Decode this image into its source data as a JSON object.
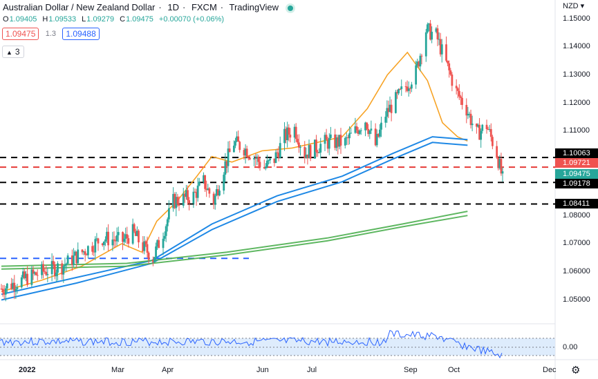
{
  "header": {
    "symbol_name": "Australian Dollar / New Zealand Dollar",
    "interval": "1D",
    "exchange": "FXCM",
    "source": "TradingView"
  },
  "ohlc": {
    "o_label": "O",
    "o_value": "1.09405",
    "h_label": "H",
    "h_value": "1.09533",
    "l_label": "L",
    "l_value": "1.09279",
    "c_label": "C",
    "c_value": "1.09475",
    "change": "+0.00070 (+0.06%)"
  },
  "quote": {
    "sell": "1.09475",
    "spread": "1.3",
    "buy": "1.09488"
  },
  "indicators_toggle": {
    "count": "3"
  },
  "price_axis": {
    "currency": "NZD",
    "ticks": [
      "1.15000",
      "1.14000",
      "1.13000",
      "1.12000",
      "1.11000",
      "1.08000",
      "1.07000",
      "1.06000",
      "1.05000"
    ],
    "oscillator_tick": "0.00",
    "price_labels": {
      "level_top": "1.10063",
      "red_line": "1.09721",
      "last": "1.09475",
      "level_mid": "1.09178",
      "level_low": "1.08411"
    }
  },
  "time_axis": {
    "labels": [
      "2022",
      "Mar",
      "Apr",
      "Jun",
      "Jul",
      "Sep",
      "Oct",
      "Dec"
    ]
  },
  "colors": {
    "up": "#26a69a",
    "down": "#ef5350",
    "ema_fast": "#f7a325",
    "ma_blue": "#1e88e5",
    "ma_green": "#4caf50",
    "level_black": "#000000",
    "level_red": "#e53935",
    "level_blue": "#2962ff",
    "oscillator": "#2962ff",
    "osc_band": "#d6e7fb"
  },
  "icons": {
    "settings": "gear-icon",
    "collapse": "chevron-up-icon",
    "live": "live-dot-icon"
  },
  "chart_data": {
    "type": "candlestick",
    "ylim": [
      1.045,
      1.152
    ],
    "y_scale": "linear",
    "x_range": [
      "2021-12",
      "2022-12"
    ],
    "levels": [
      {
        "price": 1.10063,
        "style": "dashed",
        "color": "#000000"
      },
      {
        "price": 1.09721,
        "style": "dashed",
        "color": "#e53935"
      },
      {
        "price": 1.09178,
        "style": "dashed",
        "color": "#000000"
      },
      {
        "price": 1.08411,
        "style": "dashed",
        "color": "#000000"
      },
      {
        "price": 1.0648,
        "style": "dashed",
        "color": "#2962ff"
      }
    ],
    "price_path": [
      [
        "2021-12-13",
        1.054
      ],
      [
        "2021-12-27",
        1.057
      ],
      [
        "2022-01-10",
        1.06
      ],
      [
        "2022-01-24",
        1.062
      ],
      [
        "2022-02-07",
        1.067
      ],
      [
        "2022-02-21",
        1.072
      ],
      [
        "2022-03-07",
        1.071
      ],
      [
        "2022-03-14",
        1.074
      ],
      [
        "2022-03-21",
        1.069
      ],
      [
        "2022-03-28",
        1.065
      ],
      [
        "2022-04-04",
        1.074
      ],
      [
        "2022-04-11",
        1.085
      ],
      [
        "2022-04-25",
        1.087
      ],
      [
        "2022-05-02",
        1.092
      ],
      [
        "2022-05-09",
        1.085
      ],
      [
        "2022-05-16",
        1.097
      ],
      [
        "2022-05-23",
        1.106
      ],
      [
        "2022-05-30",
        1.104
      ],
      [
        "2022-06-06",
        1.101
      ],
      [
        "2022-06-13",
        1.097
      ],
      [
        "2022-06-20",
        1.1
      ],
      [
        "2022-06-27",
        1.108
      ],
      [
        "2022-07-04",
        1.111
      ],
      [
        "2022-07-11",
        1.102
      ],
      [
        "2022-07-25",
        1.106
      ],
      [
        "2022-08-08",
        1.106
      ],
      [
        "2022-08-22",
        1.114
      ],
      [
        "2022-08-29",
        1.105
      ],
      [
        "2022-09-05",
        1.116
      ],
      [
        "2022-09-12",
        1.121
      ],
      [
        "2022-09-19",
        1.126
      ],
      [
        "2022-09-26",
        1.131
      ],
      [
        "2022-10-03",
        1.146
      ],
      [
        "2022-10-10",
        1.144
      ],
      [
        "2022-10-17",
        1.134
      ],
      [
        "2022-10-24",
        1.124
      ],
      [
        "2022-10-31",
        1.118
      ],
      [
        "2022-11-07",
        1.109
      ],
      [
        "2022-11-14",
        1.112
      ],
      [
        "2022-11-21",
        1.102
      ],
      [
        "2022-11-25",
        1.0928
      ]
    ],
    "series": [
      {
        "name": "",
        "color": "#f7a325",
        "values": [
          [
            0,
            1.053
          ],
          [
            0.08,
            1.057
          ],
          [
            0.16,
            1.062
          ],
          [
            0.24,
            1.07
          ],
          [
            0.28,
            1.067
          ],
          [
            0.31,
            1.078
          ],
          [
            0.35,
            1.085
          ],
          [
            0.39,
            1.094
          ],
          [
            0.42,
            1.101
          ],
          [
            0.46,
            1.099
          ],
          [
            0.52,
            1.103
          ],
          [
            0.58,
            1.104
          ],
          [
            0.63,
            1.106
          ],
          [
            0.68,
            1.108
          ],
          [
            0.73,
            1.118
          ],
          [
            0.77,
            1.13
          ],
          [
            0.81,
            1.138
          ],
          [
            0.85,
            1.128
          ],
          [
            0.88,
            1.113
          ],
          [
            0.91,
            1.108
          ],
          [
            0.93,
            1.1065
          ]
        ]
      },
      {
        "name": "",
        "color": "#1e88e5",
        "values": [
          [
            0,
            1.05
          ],
          [
            0.15,
            1.056
          ],
          [
            0.3,
            1.063
          ],
          [
            0.42,
            1.075
          ],
          [
            0.55,
            1.085
          ],
          [
            0.68,
            1.092
          ],
          [
            0.78,
            1.1
          ],
          [
            0.86,
            1.106
          ],
          [
            0.93,
            1.105
          ]
        ]
      },
      {
        "name": "",
        "color": "#1e88e5",
        "values": [
          [
            0,
            1.052
          ],
          [
            0.15,
            1.058
          ],
          [
            0.3,
            1.064
          ],
          [
            0.42,
            1.077
          ],
          [
            0.55,
            1.087
          ],
          [
            0.68,
            1.094
          ],
          [
            0.78,
            1.102
          ],
          [
            0.86,
            1.108
          ],
          [
            0.93,
            1.107
          ]
        ]
      },
      {
        "name": "",
        "color": "#4caf50",
        "values": [
          [
            0,
            1.061
          ],
          [
            0.25,
            1.062
          ],
          [
            0.45,
            1.066
          ],
          [
            0.65,
            1.071
          ],
          [
            0.8,
            1.076
          ],
          [
            0.93,
            1.08
          ]
        ]
      },
      {
        "name": "",
        "color": "#4caf50",
        "values": [
          [
            0,
            1.062
          ],
          [
            0.25,
            1.063
          ],
          [
            0.45,
            1.067
          ],
          [
            0.65,
            1.072
          ],
          [
            0.8,
            1.077
          ],
          [
            0.93,
            1.0815
          ]
        ]
      }
    ]
  }
}
